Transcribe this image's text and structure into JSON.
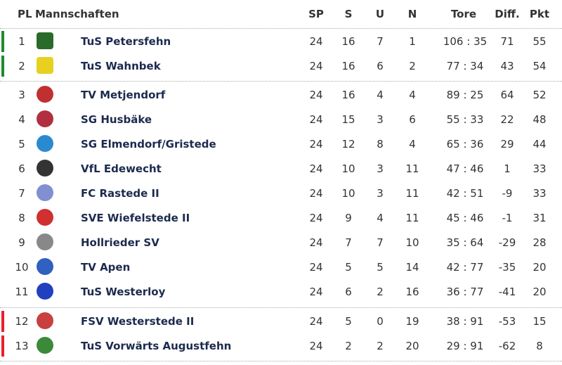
{
  "header": {
    "pl": "PL",
    "team": "Mannschaften",
    "sp": "SP",
    "s": "S",
    "u": "U",
    "n": "N",
    "tore": "Tore",
    "diff": "Diff.",
    "pkt": "Pkt"
  },
  "colors": {
    "promotion": "#1e8a2e",
    "relegation": "#e8202a",
    "team_name": "#1c2a4e"
  },
  "rows": [
    {
      "pl": "1",
      "team": "TuS Petersfehn",
      "sp": "24",
      "s": "16",
      "u": "7",
      "n": "1",
      "tore": "106 : 35",
      "diff": "71",
      "pkt": "55",
      "zone": "promotion",
      "logo": "#2a6a2a"
    },
    {
      "pl": "2",
      "team": "TuS Wahnbek",
      "sp": "24",
      "s": "16",
      "u": "6",
      "n": "2",
      "tore": "77 : 34",
      "diff": "43",
      "pkt": "54",
      "zone": "promotion",
      "logo": "#e8d020"
    },
    {
      "pl": "3",
      "team": "TV Metjendorf",
      "sp": "24",
      "s": "16",
      "u": "4",
      "n": "4",
      "tore": "89 : 25",
      "diff": "64",
      "pkt": "52",
      "zone": "",
      "logo": "#c03030"
    },
    {
      "pl": "4",
      "team": "SG Husbäke",
      "sp": "24",
      "s": "15",
      "u": "3",
      "n": "6",
      "tore": "55 : 33",
      "diff": "22",
      "pkt": "48",
      "zone": "",
      "logo": "#b03040"
    },
    {
      "pl": "5",
      "team": "SG Elmendorf/Gristede",
      "sp": "24",
      "s": "12",
      "u": "8",
      "n": "4",
      "tore": "65 : 36",
      "diff": "29",
      "pkt": "44",
      "zone": "",
      "logo": "#2a8ad0"
    },
    {
      "pl": "6",
      "team": "VfL Edewecht",
      "sp": "24",
      "s": "10",
      "u": "3",
      "n": "11",
      "tore": "47 : 46",
      "diff": "1",
      "pkt": "33",
      "zone": "",
      "logo": "#333333"
    },
    {
      "pl": "7",
      "team": "FC Rastede II",
      "sp": "24",
      "s": "10",
      "u": "3",
      "n": "11",
      "tore": "42 : 51",
      "diff": "-9",
      "pkt": "33",
      "zone": "",
      "logo": "#8090d0"
    },
    {
      "pl": "8",
      "team": "SVE Wiefelstede II",
      "sp": "24",
      "s": "9",
      "u": "4",
      "n": "11",
      "tore": "45 : 46",
      "diff": "-1",
      "pkt": "31",
      "zone": "",
      "logo": "#d03030"
    },
    {
      "pl": "9",
      "team": "Hollrieder SV",
      "sp": "24",
      "s": "7",
      "u": "7",
      "n": "10",
      "tore": "35 : 64",
      "diff": "-29",
      "pkt": "28",
      "zone": "",
      "logo": "#888888"
    },
    {
      "pl": "10",
      "team": "TV Apen",
      "sp": "24",
      "s": "5",
      "u": "5",
      "n": "14",
      "tore": "42 : 77",
      "diff": "-35",
      "pkt": "20",
      "zone": "",
      "logo": "#3060c0"
    },
    {
      "pl": "11",
      "team": "TuS Westerloy",
      "sp": "24",
      "s": "6",
      "u": "2",
      "n": "16",
      "tore": "36 : 77",
      "diff": "-41",
      "pkt": "20",
      "zone": "",
      "logo": "#2040c0"
    },
    {
      "pl": "12",
      "team": "FSV Westerstede II",
      "sp": "24",
      "s": "5",
      "u": "0",
      "n": "19",
      "tore": "38 : 91",
      "diff": "-53",
      "pkt": "15",
      "zone": "relegation",
      "logo": "#c84040"
    },
    {
      "pl": "13",
      "team": "TuS Vorwärts Augustfehn",
      "sp": "24",
      "s": "2",
      "u": "2",
      "n": "20",
      "tore": "29 : 91",
      "diff": "-62",
      "pkt": "8",
      "zone": "relegation",
      "logo": "#3a8a3a"
    }
  ]
}
